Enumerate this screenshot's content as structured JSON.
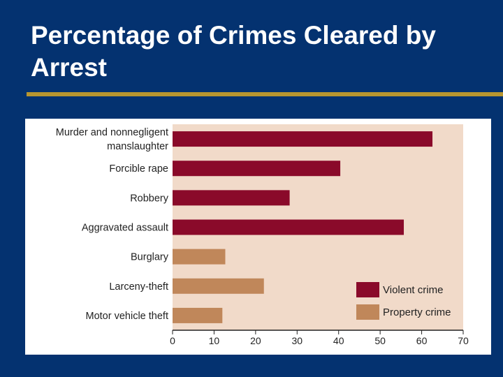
{
  "slide": {
    "title": "Percentage of Crimes Cleared by Arrest"
  },
  "colors": {
    "background": "#043270",
    "title_rule": "#b8962f",
    "plot_background": "#f1dac9",
    "violent": "#8a0a2a",
    "property": "#c0875a"
  },
  "chart_data": {
    "type": "bar",
    "orientation": "horizontal",
    "title": "",
    "xlabel": "",
    "ylabel": "",
    "xlim": [
      0,
      70
    ],
    "xticks": [
      0,
      10,
      20,
      30,
      40,
      50,
      60,
      70
    ],
    "grid": false,
    "legend_position": "bottom-right",
    "categories": [
      [
        "Murder and nonnegligent",
        "manslaughter"
      ],
      [
        "Forcible rape"
      ],
      [
        "Robbery"
      ],
      [
        "Aggravated assault"
      ],
      [
        "Burglary"
      ],
      [
        "Larceny-theft"
      ],
      [
        "Motor vehicle theft"
      ]
    ],
    "values": [
      62.6,
      40.4,
      28.2,
      55.7,
      12.7,
      22.0,
      12.0
    ],
    "bar_series": [
      "violent",
      "violent",
      "violent",
      "violent",
      "property",
      "property",
      "property"
    ],
    "series": [
      {
        "key": "violent",
        "name": "Violent crime"
      },
      {
        "key": "property",
        "name": "Property crime"
      }
    ]
  }
}
